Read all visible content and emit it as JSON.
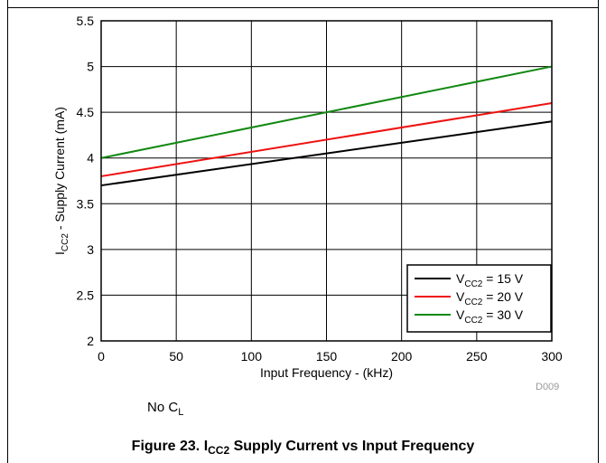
{
  "chart_data": {
    "type": "line",
    "xlabel": "Input Frequency - (kHz)",
    "ylabel_main": "I",
    "ylabel_sub": "CC2",
    "ylabel_rest": " - Supply Current (mA)",
    "xlim": [
      0,
      300
    ],
    "ylim": [
      2,
      5.5
    ],
    "x_ticks": [
      0,
      50,
      100,
      150,
      200,
      250,
      300
    ],
    "y_ticks": [
      2,
      2.5,
      3,
      3.5,
      4,
      4.5,
      5,
      5.5
    ],
    "x_tick_labels": [
      "0",
      "50",
      "100",
      "150",
      "200",
      "250",
      "300"
    ],
    "y_tick_labels": [
      "2",
      "2.5",
      "3",
      "3.5",
      "4",
      "4.5",
      "5",
      "5.5"
    ],
    "grid": true,
    "legend_position": "bottom-right",
    "series": [
      {
        "name_main": "V",
        "name_sub": "CC2",
        "name_rest": " = 15 V",
        "color": "#000000",
        "x": [
          0,
          300
        ],
        "y": [
          3.7,
          4.4
        ]
      },
      {
        "name_main": "V",
        "name_sub": "CC2",
        "name_rest": " = 20 V",
        "color": "#ee1111",
        "x": [
          0,
          300
        ],
        "y": [
          3.8,
          4.6
        ]
      },
      {
        "name_main": "V",
        "name_sub": "CC2",
        "name_rest": " = 30 V",
        "color": "#118811",
        "x": [
          0,
          300
        ],
        "y": [
          4.0,
          5.0
        ]
      }
    ],
    "annotations": {
      "id_label": "D009",
      "note_main": "No C",
      "note_sub": "L"
    }
  },
  "caption": {
    "prefix": "Figure 23. I",
    "sub": "CC2",
    "suffix": " Supply Current vs Input Frequency"
  }
}
